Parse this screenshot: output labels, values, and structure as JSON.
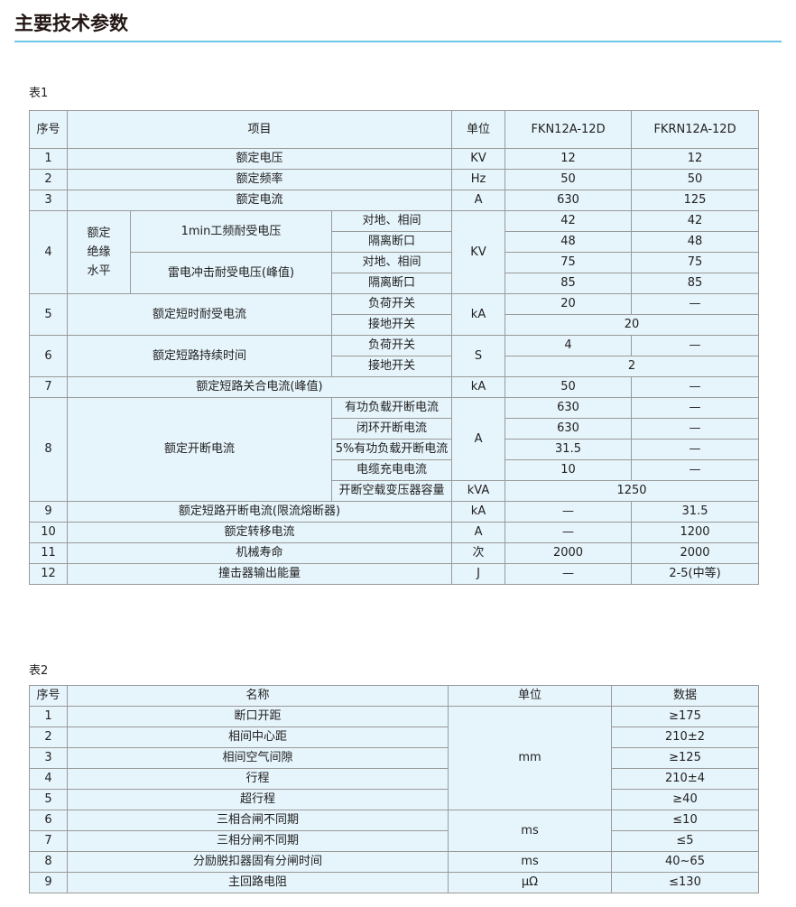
{
  "title": "主要技术参数",
  "table1": {
    "caption": "表1",
    "headers": [
      "序号",
      "项目",
      "单位",
      "FKN12A-12D",
      "FKRN12A-12D"
    ],
    "r1": [
      "1",
      "额定电压",
      "KV",
      "12",
      "12"
    ],
    "r2": [
      "2",
      "额定频率",
      "Hz",
      "50",
      "50"
    ],
    "r3": [
      "3",
      "额定电流",
      "A",
      "630",
      "125"
    ],
    "r4": {
      "no": "4",
      "group": "额定绝缘水平",
      "sub1": "1min工频耐受电压",
      "sub2": "雷电冲击耐受电压(峰值)",
      "a": "对地、相间",
      "b": "隔离断口",
      "unit": "KV",
      "v": [
        [
          "42",
          "42"
        ],
        [
          "48",
          "48"
        ],
        [
          "75",
          "75"
        ],
        [
          "85",
          "85"
        ]
      ]
    },
    "r5": {
      "no": "5",
      "item": "额定短时耐受电流",
      "a": "负荷开关",
      "b": "接地开关",
      "unit": "kA",
      "va": [
        "20",
        "—"
      ],
      "vb": "20"
    },
    "r6": {
      "no": "6",
      "item": "额定短路持续时间",
      "a": "负荷开关",
      "b": "接地开关",
      "unit": "S",
      "va": [
        "4",
        "—"
      ],
      "vb": "2"
    },
    "r7": [
      "7",
      "额定短路关合电流(峰值)",
      "kA",
      "50",
      "—"
    ],
    "r8": {
      "no": "8",
      "item": "额定开断电流",
      "subs": [
        "有功负载开断电流",
        "闭环开断电流",
        "5%有功负载开断电流",
        "电缆充电电流",
        "开断空载变压器容量"
      ],
      "unit": "A",
      "unit2": "kVA",
      "v": [
        [
          "630",
          "—"
        ],
        [
          "630",
          "—"
        ],
        [
          "31.5",
          "—"
        ],
        [
          "10",
          "—"
        ]
      ],
      "v5": "1250"
    },
    "r9": [
      "9",
      "额定短路开断电流(限流熔断器)",
      "kA",
      "—",
      "31.5"
    ],
    "r10": [
      "10",
      "额定转移电流",
      "A",
      "—",
      "1200"
    ],
    "r11": [
      "11",
      "机械寿命",
      "次",
      "2000",
      "2000"
    ],
    "r12": [
      "12",
      "撞击器输出能量",
      "J",
      "—",
      "2-5(中等)"
    ]
  },
  "table2": {
    "caption": "表2",
    "headers": [
      "序号",
      "名称",
      "单位",
      "数据"
    ],
    "rows": [
      [
        "1",
        "断口开距",
        "mm",
        "≥175"
      ],
      [
        "2",
        "相间中心距",
        "",
        "210±2"
      ],
      [
        "3",
        "相间空气间隙",
        "",
        "≥125"
      ],
      [
        "4",
        "行程",
        "",
        "210±4"
      ],
      [
        "5",
        "超行程",
        "",
        "≥40"
      ],
      [
        "6",
        "三相合闸不同期",
        "ms",
        "≤10"
      ],
      [
        "7",
        "三相分闸不同期",
        "",
        "≤5"
      ],
      [
        "8",
        "分励脱扣器固有分闸时间",
        "ms",
        "40~65"
      ],
      [
        "9",
        "主回路电阻",
        "μΩ",
        "≤130"
      ]
    ]
  }
}
